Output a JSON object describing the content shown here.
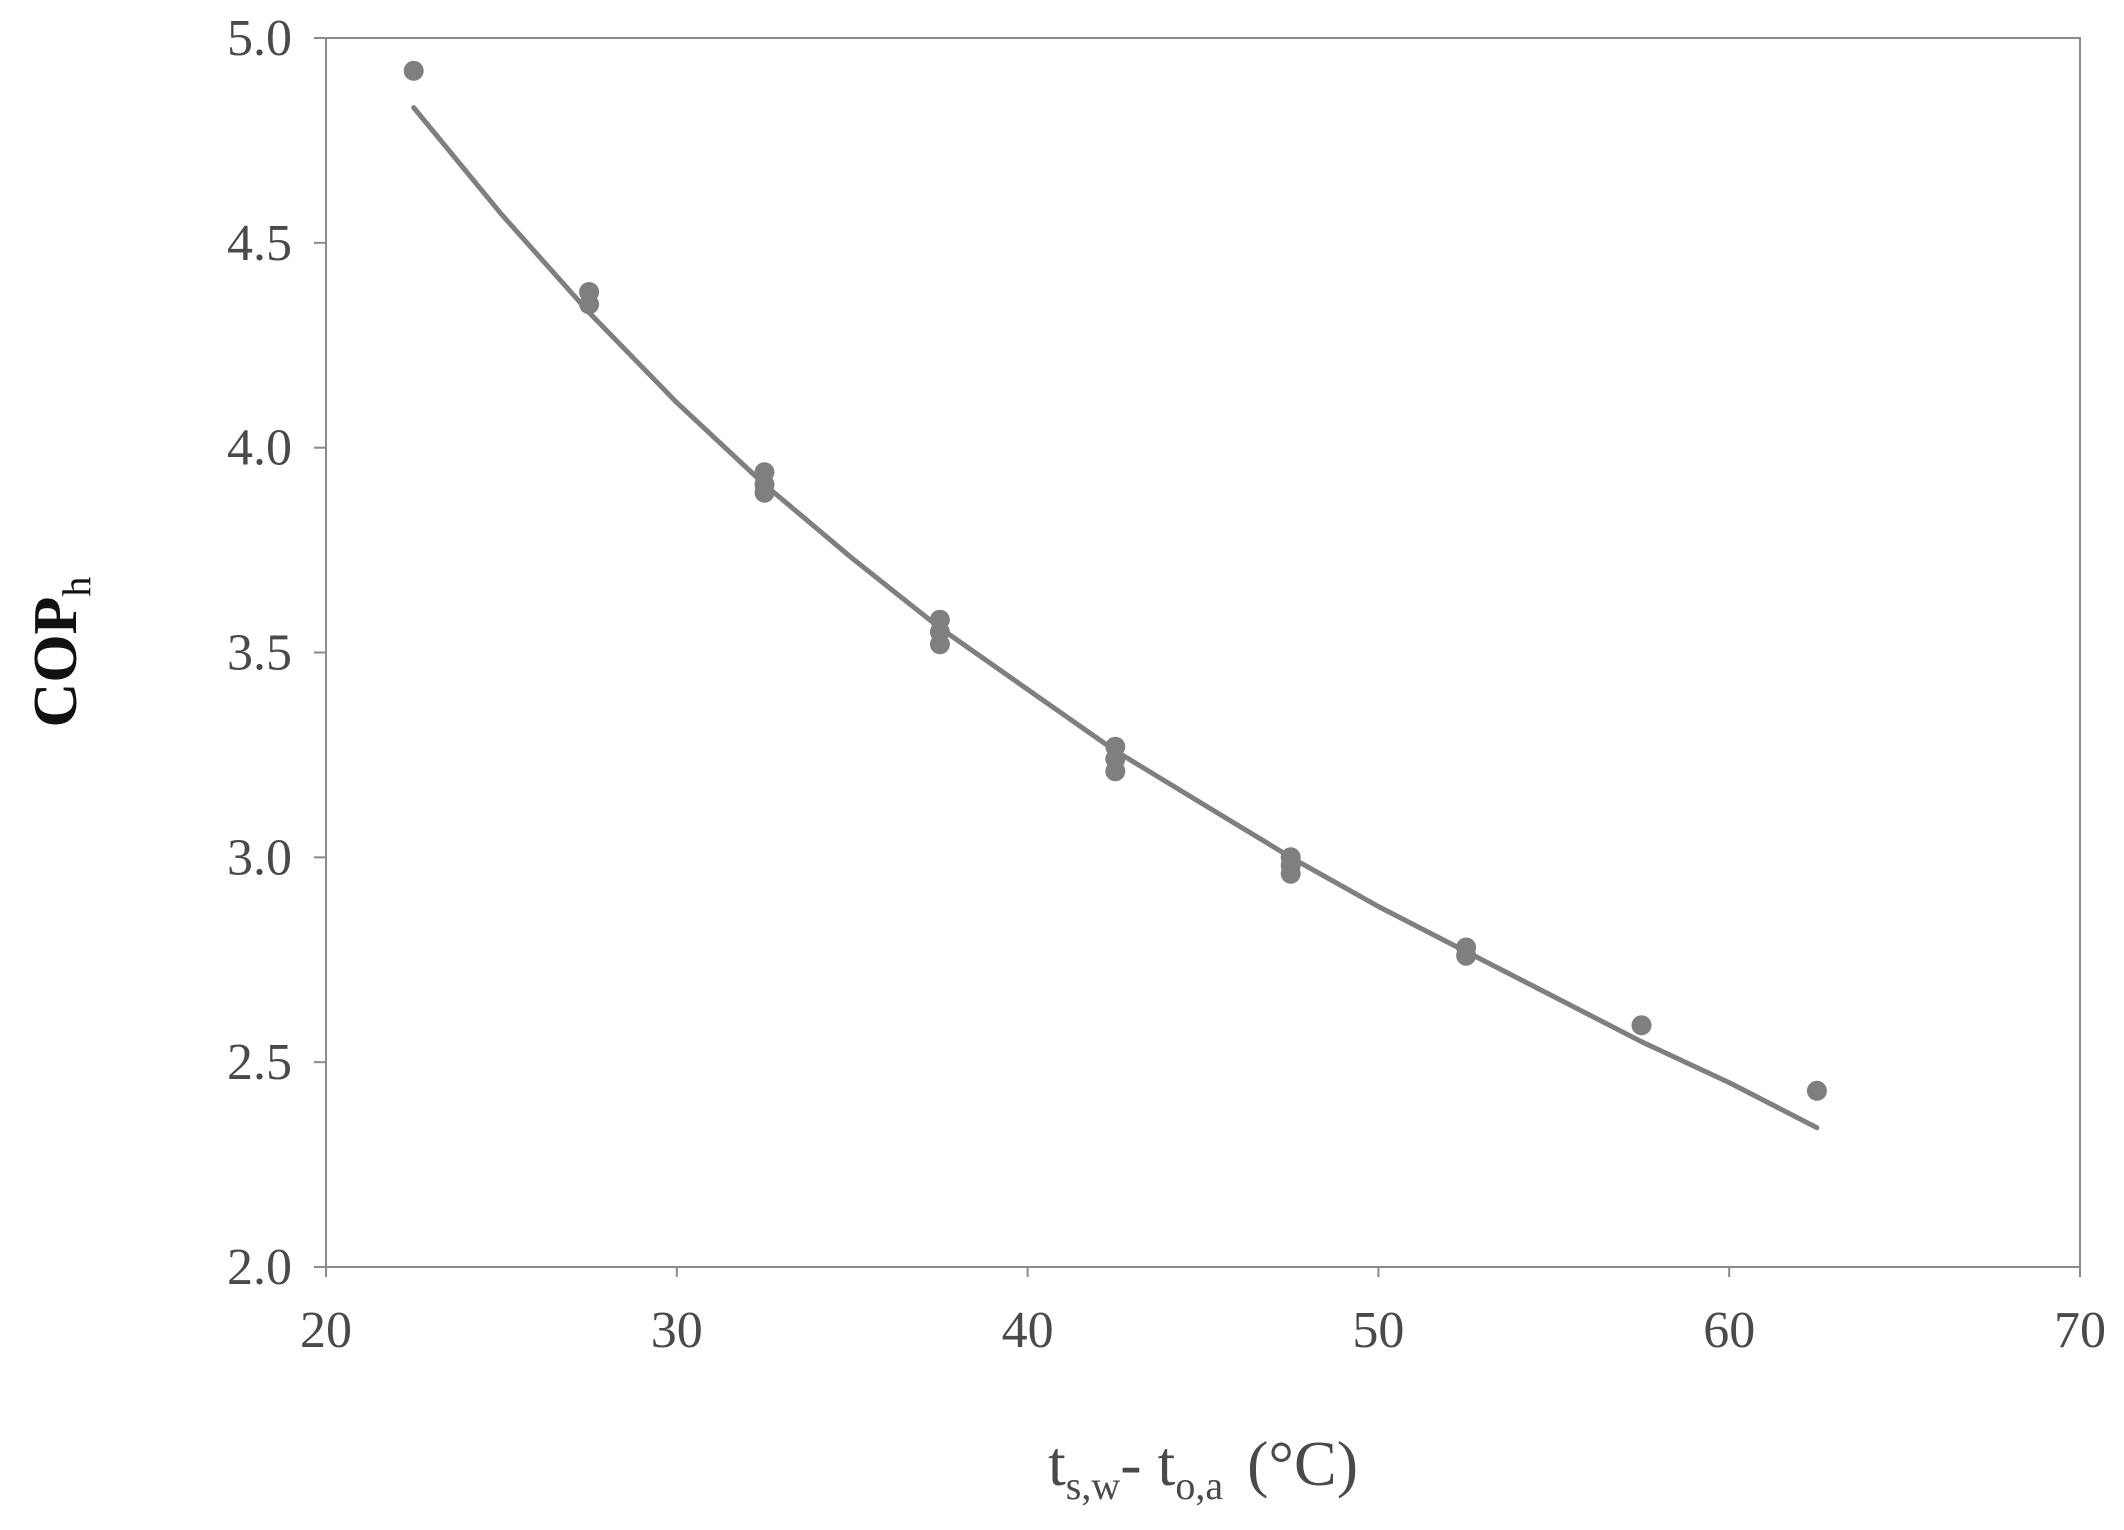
{
  "chart_data": {
    "type": "scatter",
    "xlabel": {
      "main": "t",
      "sub1": "s,w",
      "dash": "- t",
      "sub2": "o,a",
      "unit": "(°C)"
    },
    "ylabel": {
      "main": "COP",
      "sub": "h"
    },
    "xlim": [
      20,
      70
    ],
    "ylim": [
      2.0,
      5.0
    ],
    "x_ticks": [
      20,
      30,
      40,
      50,
      60,
      70
    ],
    "y_ticks": [
      2.0,
      2.5,
      3.0,
      3.5,
      4.0,
      4.5,
      5.0
    ],
    "x_tick_labels": [
      "20",
      "30",
      "40",
      "50",
      "60",
      "70"
    ],
    "y_tick_labels": [
      "2.0",
      "2.5",
      "3.0",
      "3.5",
      "4.0",
      "4.5",
      "5.0"
    ],
    "grid": false,
    "series": [
      {
        "type": "scatter",
        "points": [
          {
            "x": 22.5,
            "y": 4.92
          },
          {
            "x": 27.5,
            "y": 4.38
          },
          {
            "x": 27.5,
            "y": 4.35
          },
          {
            "x": 32.5,
            "y": 3.94
          },
          {
            "x": 32.5,
            "y": 3.91
          },
          {
            "x": 32.5,
            "y": 3.89
          },
          {
            "x": 37.5,
            "y": 3.58
          },
          {
            "x": 37.5,
            "y": 3.55
          },
          {
            "x": 37.5,
            "y": 3.52
          },
          {
            "x": 42.5,
            "y": 3.27
          },
          {
            "x": 42.5,
            "y": 3.24
          },
          {
            "x": 42.5,
            "y": 3.21
          },
          {
            "x": 47.5,
            "y": 3.0
          },
          {
            "x": 47.5,
            "y": 2.98
          },
          {
            "x": 47.5,
            "y": 2.96
          },
          {
            "x": 52.5,
            "y": 2.78
          },
          {
            "x": 52.5,
            "y": 2.76
          },
          {
            "x": 57.5,
            "y": 2.59
          },
          {
            "x": 62.5,
            "y": 2.43
          }
        ]
      },
      {
        "type": "line",
        "points": [
          {
            "x": 22.5,
            "y": 4.83
          },
          {
            "x": 25.0,
            "y": 4.57
          },
          {
            "x": 27.5,
            "y": 4.33
          },
          {
            "x": 30.0,
            "y": 4.11
          },
          {
            "x": 32.5,
            "y": 3.91
          },
          {
            "x": 35.0,
            "y": 3.73
          },
          {
            "x": 37.5,
            "y": 3.56
          },
          {
            "x": 40.0,
            "y": 3.41
          },
          {
            "x": 42.5,
            "y": 3.26
          },
          {
            "x": 45.0,
            "y": 3.13
          },
          {
            "x": 47.5,
            "y": 3.0
          },
          {
            "x": 50.0,
            "y": 2.88
          },
          {
            "x": 52.5,
            "y": 2.77
          },
          {
            "x": 55.0,
            "y": 2.66
          },
          {
            "x": 57.5,
            "y": 2.55
          },
          {
            "x": 60.0,
            "y": 2.45
          },
          {
            "x": 62.5,
            "y": 2.34
          }
        ]
      }
    ],
    "colors": {
      "points": "#7f7f7f",
      "line": "#7f7f7f",
      "axis": "#8a8a8a",
      "text": "#4a4a4a"
    }
  }
}
